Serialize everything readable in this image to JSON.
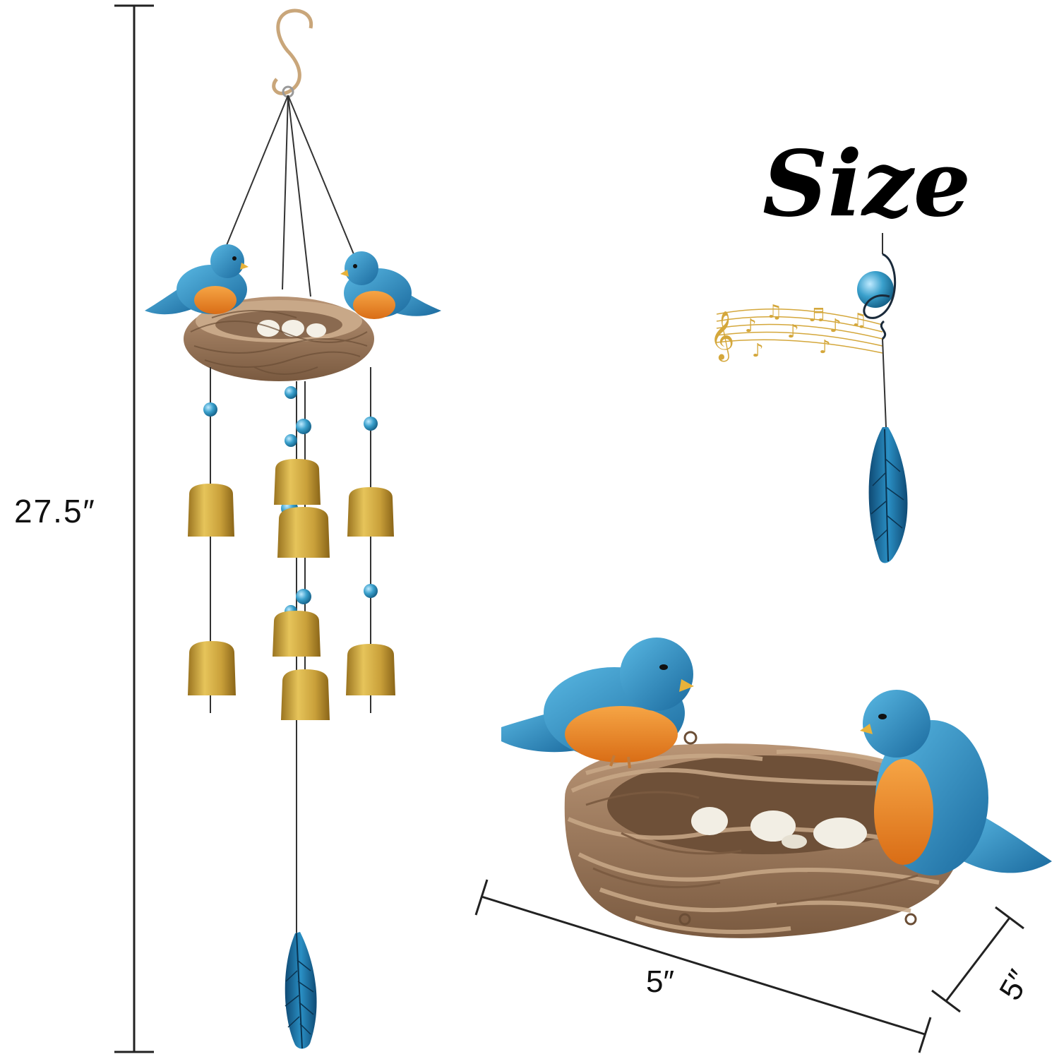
{
  "title": "Size",
  "dimensions": {
    "height_label": "27.5″",
    "width_label": "5″",
    "depth_label": "5″"
  },
  "colors": {
    "bird_blue": "#2a8fc4",
    "bird_orange": "#f08a2a",
    "nest_brown": "#a07d5e",
    "bell_gold": "#c9a03a",
    "bead_blue": "#3aa0cc",
    "feather_blue": "#1d6fa8",
    "note_gold": "#d4a73b"
  },
  "icons": {
    "music": "music-notes-icon"
  }
}
